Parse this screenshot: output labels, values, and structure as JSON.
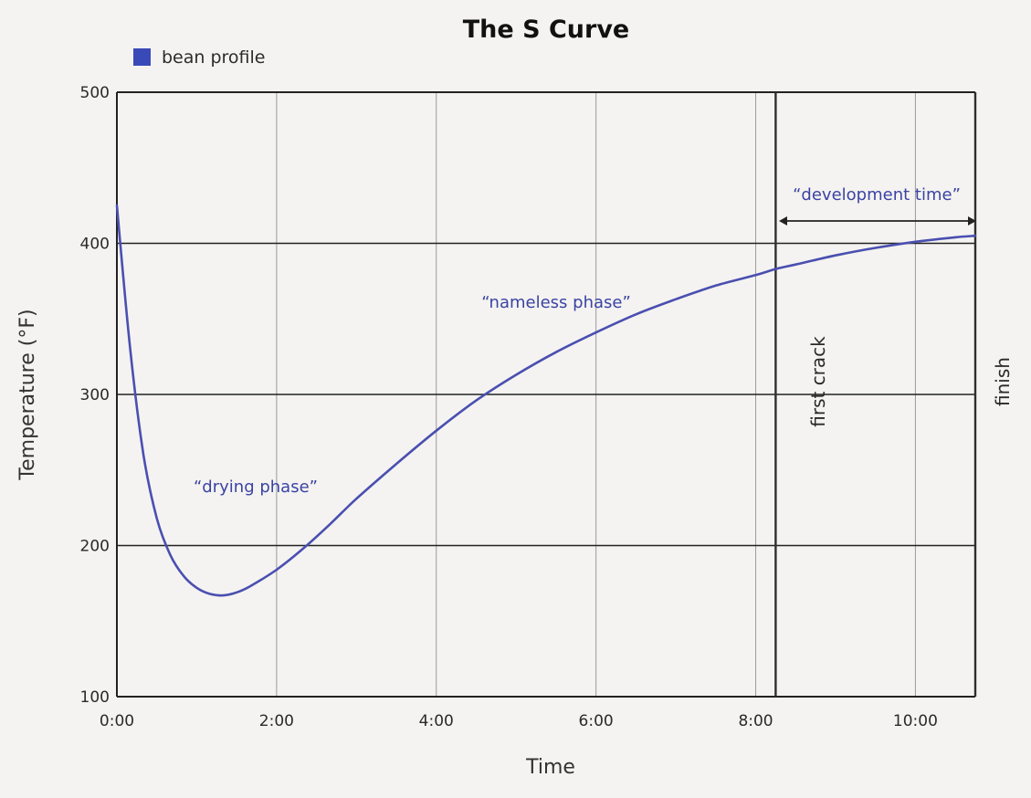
{
  "chart_data": {
    "type": "line",
    "title": "The S Curve",
    "xlabel": "Time",
    "ylabel": "Temperature (°F)",
    "xlim": [
      "0:00",
      "10:45"
    ],
    "ylim": [
      100,
      500
    ],
    "grid": true,
    "legend_position": "top-left",
    "x_ticks": [
      "0:00",
      "2:00",
      "4:00",
      "6:00",
      "8:00",
      "10:00"
    ],
    "y_ticks": [
      100,
      200,
      300,
      400,
      500
    ],
    "series": [
      {
        "name": "bean profile",
        "color": "#4a4fb0",
        "x": [
          "0:00",
          "0:10",
          "0:20",
          "0:30",
          "0:40",
          "0:50",
          "1:00",
          "1:10",
          "1:20",
          "1:30",
          "1:40",
          "2:00",
          "2:20",
          "2:40",
          "3:00",
          "3:30",
          "4:00",
          "4:30",
          "5:00",
          "5:30",
          "6:00",
          "6:30",
          "7:00",
          "7:30",
          "8:00",
          "8:15",
          "8:30",
          "9:00",
          "9:30",
          "10:00",
          "10:30",
          "10:45"
        ],
        "y": [
          425,
          330,
          260,
          218,
          194,
          180,
          172,
          168,
          167,
          169,
          173,
          184,
          198,
          214,
          231,
          254,
          276,
          296,
          313,
          328,
          341,
          353,
          363,
          372,
          379,
          383,
          386,
          392,
          397,
          401,
          404,
          405
        ]
      }
    ],
    "markers": [
      {
        "label": "first crack",
        "x": "8:15"
      },
      {
        "label": "finish",
        "x": "10:45"
      }
    ],
    "annotations": {
      "drying_phase": "“drying phase”",
      "nameless_phase": "“nameless phase”",
      "development_time": "“development time”"
    }
  }
}
